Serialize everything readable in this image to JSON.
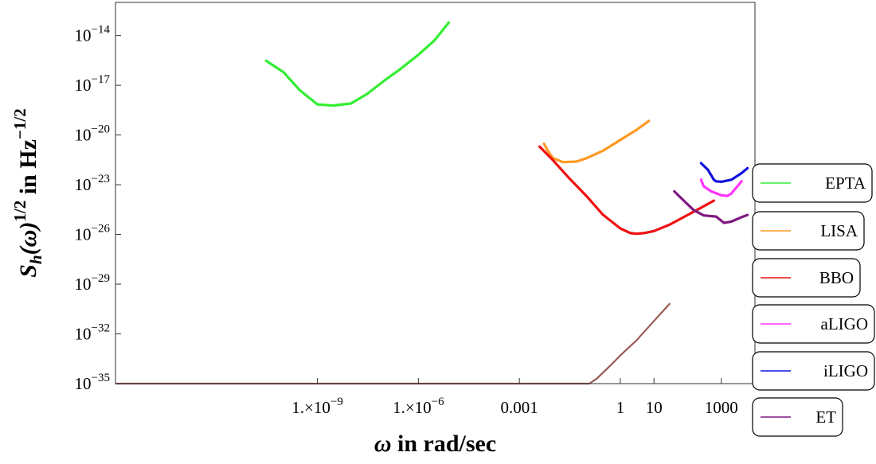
{
  "chart_data": {
    "type": "line",
    "xlabel": "ω in rad/sec",
    "ylabel_main": "S",
    "ylabel_sub": "h",
    "ylabel_mid": "(ω)",
    "ylabel_sup1": "1/2",
    "ylabel_rest": " in Hz",
    "ylabel_sup2": "−1/2",
    "x_scale": "log",
    "y_scale": "log",
    "xlim": [
      1e-15,
      10000
    ],
    "ylim": [
      1e-35,
      1e-12
    ],
    "x_ticks": [
      {
        "value": 1e-09,
        "mant": "1.×10",
        "exp": "−9"
      },
      {
        "value": 1e-06,
        "mant": "1.×10",
        "exp": "−6"
      },
      {
        "value": 0.001,
        "label": "0.001"
      },
      {
        "value": 1,
        "label": "1"
      },
      {
        "value": 10,
        "label": "10"
      },
      {
        "value": 1000,
        "label": "1000"
      }
    ],
    "y_ticks": [
      {
        "value": 1e-14,
        "base": "10",
        "exp": "−14"
      },
      {
        "value": 1e-17,
        "base": "10",
        "exp": "−17"
      },
      {
        "value": 1e-20,
        "base": "10",
        "exp": "−20"
      },
      {
        "value": 1e-23,
        "base": "10",
        "exp": "−23"
      },
      {
        "value": 1e-26,
        "base": "10",
        "exp": "−26"
      },
      {
        "value": 1e-29,
        "base": "10",
        "exp": "−29"
      },
      {
        "value": 1e-32,
        "base": "10",
        "exp": "−32"
      },
      {
        "value": 1e-35,
        "base": "10",
        "exp": "−35"
      }
    ],
    "grid": false,
    "legend_position": "right",
    "series": [
      {
        "name": "EPTA",
        "color": "#33ee33",
        "x": [
          3e-11,
          1e-10,
          3e-10,
          1e-09,
          3e-09,
          1e-08,
          3e-08,
          1e-07,
          3e-07,
          1e-06,
          3e-06,
          8e-06
        ],
        "y": [
          3e-16,
          6e-17,
          5e-18,
          7e-19,
          6e-19,
          8e-19,
          3e-18,
          2e-17,
          1e-16,
          7e-16,
          5e-15,
          6e-14
        ]
      },
      {
        "name": "LISA",
        "color": "#ff9922",
        "x": [
          0.0054,
          0.007,
          0.01,
          0.02,
          0.05,
          0.1,
          0.3,
          1,
          3,
          7
        ],
        "y": [
          3e-21,
          1.1e-21,
          4e-22,
          2.3e-22,
          2.5e-22,
          4e-22,
          1.1e-21,
          5e-21,
          2e-20,
          7e-20
        ]
      },
      {
        "name": "BBO",
        "color": "#ee1111",
        "x": [
          0.004,
          0.01,
          0.03,
          0.1,
          0.3,
          1,
          2,
          3,
          5,
          10,
          30,
          100,
          300,
          600
        ],
        "y": [
          2e-21,
          3e-22,
          2.5e-23,
          2e-24,
          1.6e-25,
          2.3e-26,
          1.2e-26,
          1.1e-26,
          1.2e-26,
          1.6e-26,
          4e-26,
          1.5e-25,
          5e-25,
          1.1e-24
        ]
      },
      {
        "name": "aLIGO",
        "color": "#ff33ff",
        "x": [
          250,
          300,
          500,
          1000,
          1500,
          2000,
          3000,
          4000
        ],
        "y": [
          2e-23,
          8e-24,
          4e-24,
          2.3e-24,
          2.1e-24,
          3e-24,
          8e-24,
          1.6e-23
        ]
      },
      {
        "name": "iLIGO",
        "color": "#1111dd",
        "x": [
          250,
          400,
          600,
          700,
          1000,
          2000,
          4000,
          6000
        ],
        "y": [
          2e-22,
          8e-23,
          2e-23,
          1.6e-23,
          1.5e-23,
          2e-23,
          5e-23,
          1e-22
        ]
      },
      {
        "name": "ET",
        "color": "#7f1880",
        "x": [
          40,
          80,
          150,
          300,
          700,
          1200,
          2000,
          4000,
          6000
        ],
        "y": [
          4e-24,
          1e-24,
          3e-25,
          1.4e-25,
          1.2e-25,
          5e-26,
          6e-26,
          1.1e-25,
          1.5e-25
        ]
      }
    ],
    "low_curve": {
      "color": "#9a5a55",
      "x": [
        1e-15,
        0.12,
        0.2,
        0.5,
        1,
        3,
        10,
        30
      ],
      "y": [
        1e-35,
        1e-35,
        2e-35,
        1.2e-34,
        5e-34,
        4e-33,
        6e-32,
        7e-31
      ]
    }
  }
}
